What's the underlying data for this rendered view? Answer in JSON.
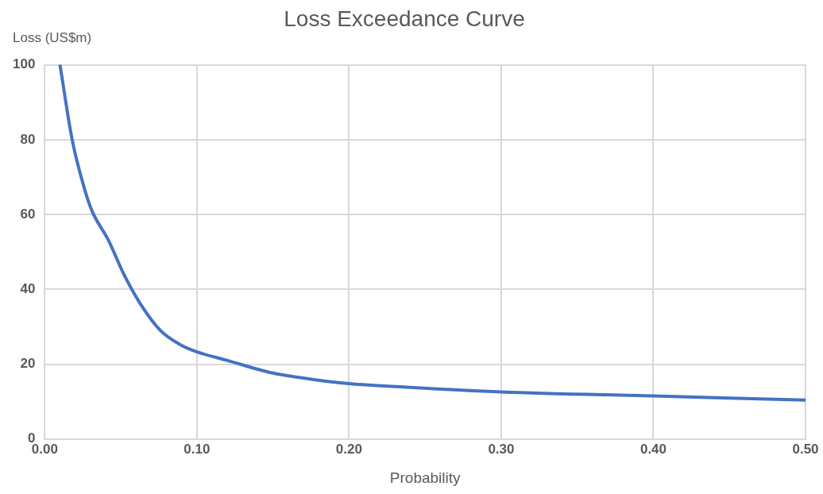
{
  "chart_data": {
    "type": "line",
    "title": "Loss Exceedance Curve",
    "xlabel": "Probability",
    "ylabel": "Loss (US$m)",
    "x": [
      0.01,
      0.018,
      0.026,
      0.031,
      0.042,
      0.052,
      0.063,
      0.076,
      0.09,
      0.1,
      0.12,
      0.148,
      0.175,
      0.2,
      0.24,
      0.3,
      0.4,
      0.5
    ],
    "series": [
      {
        "color": "#4472c4",
        "values": [
          100,
          80,
          67,
          61,
          53,
          44,
          36,
          29,
          25,
          23.3,
          21,
          17.8,
          16,
          14.8,
          13.8,
          12.6,
          11.5,
          10.4
        ]
      }
    ],
    "xlim": [
      0,
      0.5
    ],
    "xticks": [
      {
        "value": 0,
        "label": "0.00"
      },
      {
        "value": 0.1,
        "label": "0.10"
      },
      {
        "value": 0.2,
        "label": "0.20"
      },
      {
        "value": 0.3,
        "label": "0.30"
      },
      {
        "value": 0.4,
        "label": "0.40"
      },
      {
        "value": 0.5,
        "label": "0.50"
      }
    ],
    "ylim": [
      0,
      100
    ],
    "yticks": [
      0,
      20,
      40,
      60,
      80,
      100
    ],
    "grid": true,
    "marker": "none",
    "line_style": "solid"
  }
}
